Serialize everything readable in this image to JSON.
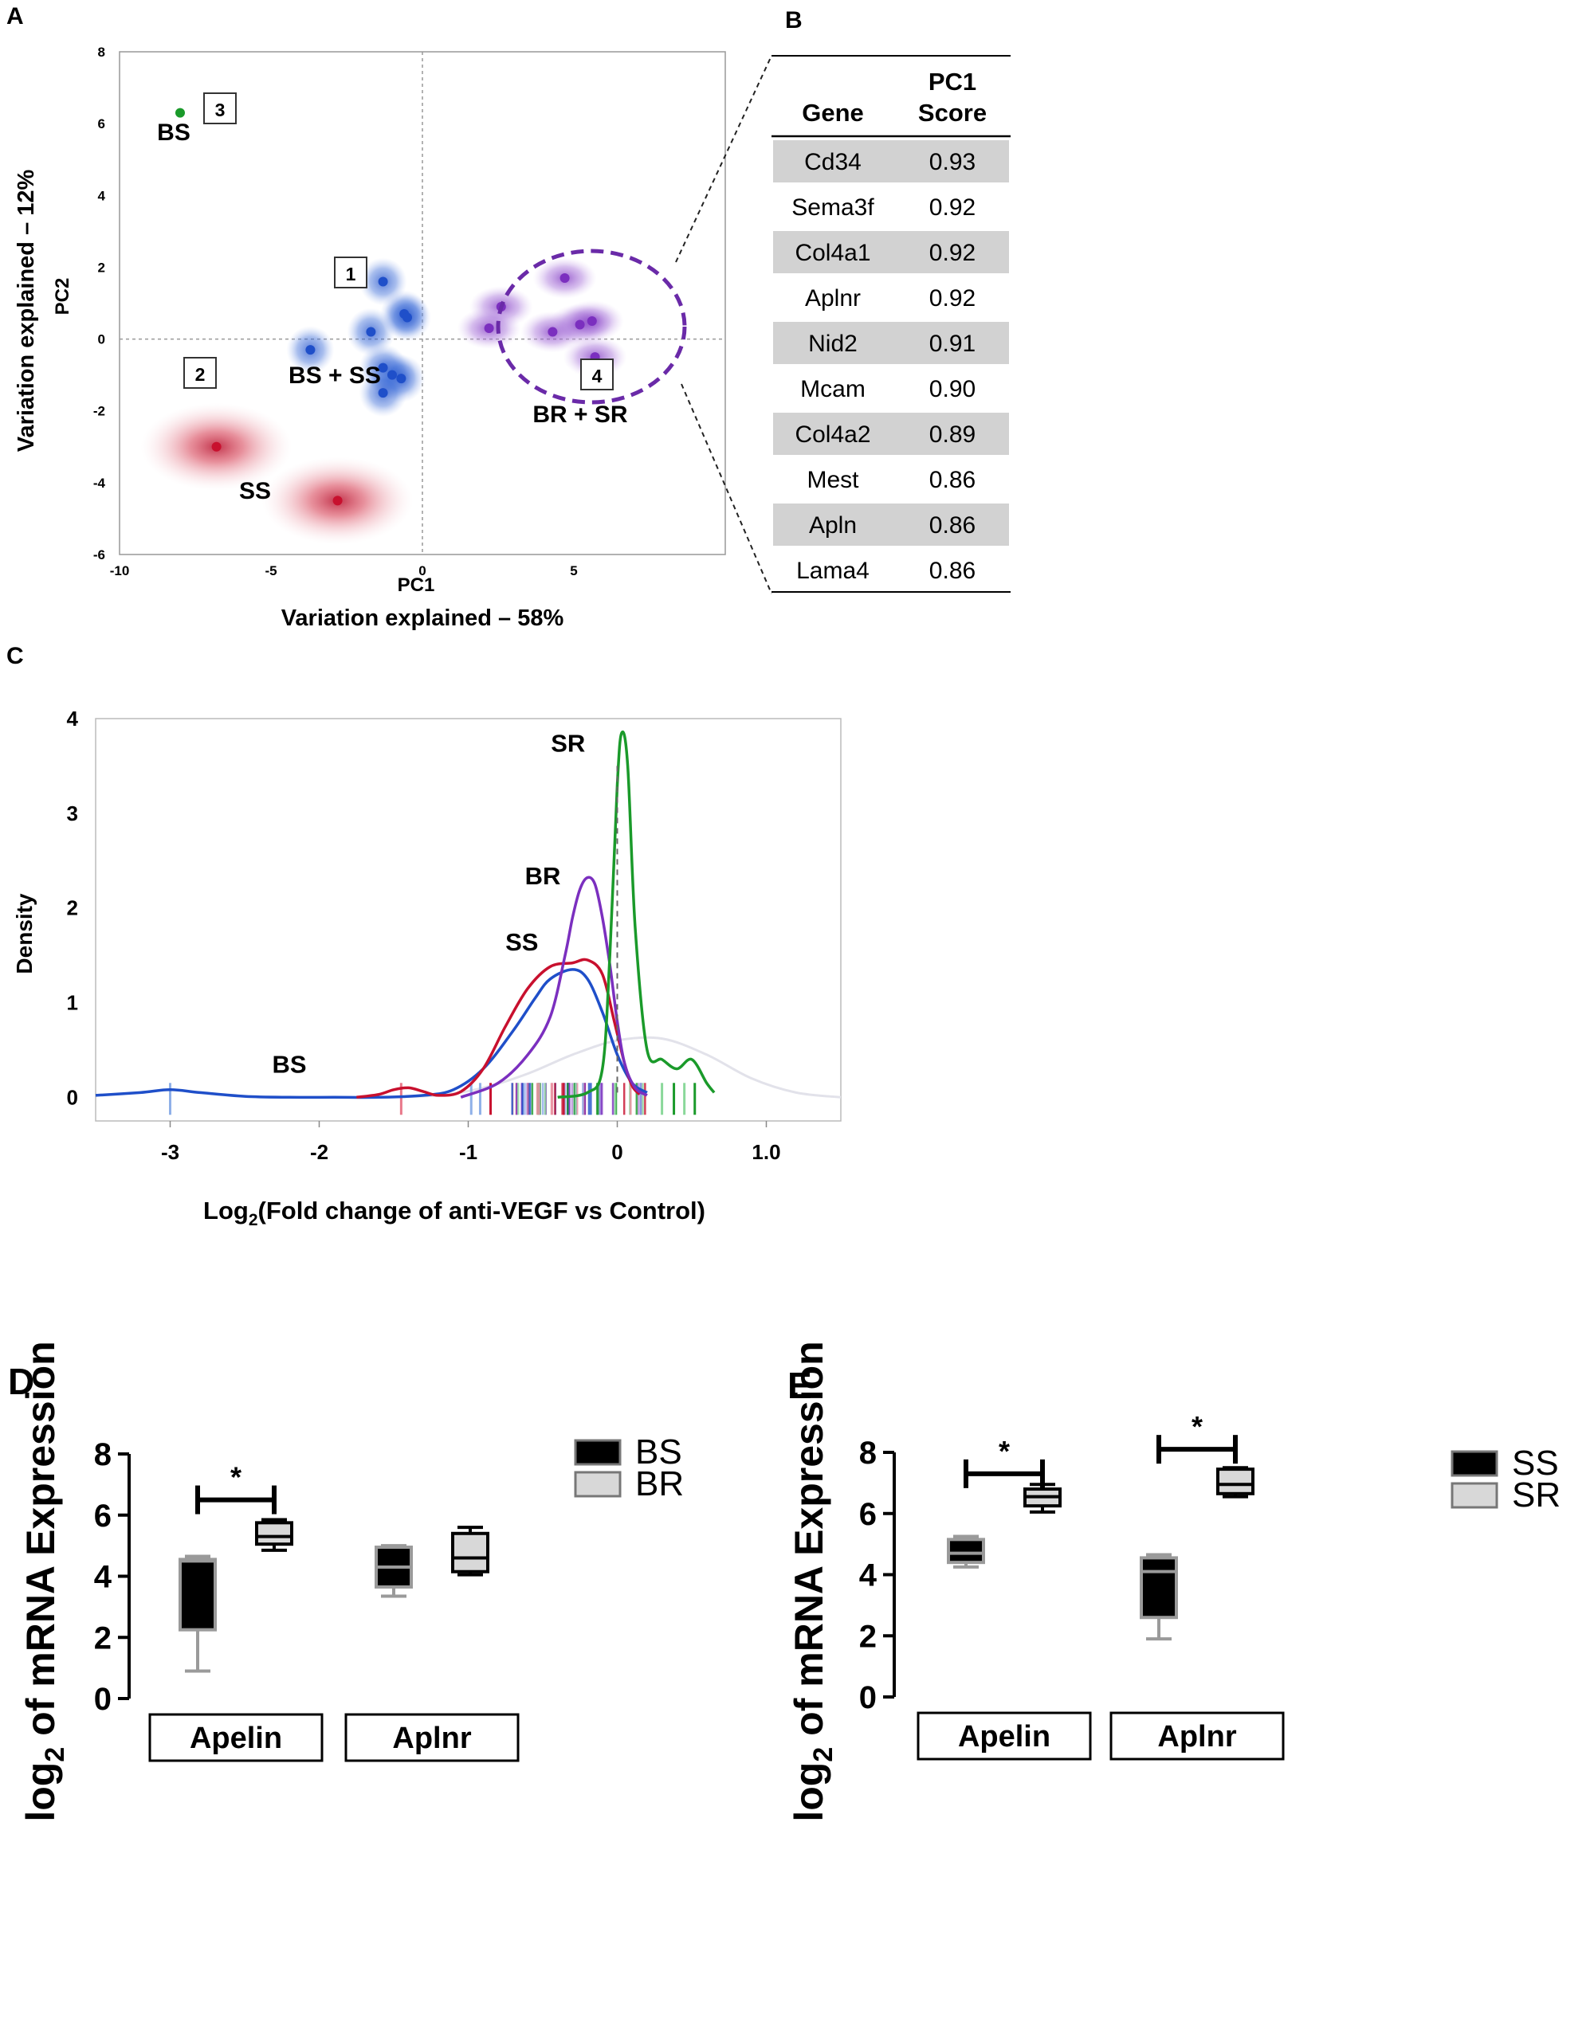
{
  "panel_labels": {
    "a": "A",
    "b": "B",
    "c": "C",
    "d": "D",
    "e": "E"
  },
  "colors": {
    "blue": "#1f4fc9",
    "purple": "#7b2fbf",
    "red": "#c8102e",
    "green": "#1a9a2a",
    "grey": "#d0d0d0",
    "black": "#000000"
  },
  "chart_data": [
    {
      "type": "scatter",
      "panel": "A",
      "xlabel": "PC1",
      "xlabel_sub": "Variation explained – 58%",
      "ylabel": "PC2",
      "ylabel_sub": "Variation explained – 12%",
      "xlim": [
        -10,
        10
      ],
      "ylim": [
        -6,
        8
      ],
      "xticks": [
        -10,
        -5,
        0,
        5
      ],
      "yticks": [
        -6,
        -4,
        -2,
        0,
        2,
        4,
        6,
        8
      ],
      "clusters": [
        {
          "id": "1",
          "label": "BS + SS",
          "color": "#1f4fc9",
          "points": [
            [
              -1.3,
              1.6
            ],
            [
              -0.6,
              0.7
            ],
            [
              -0.5,
              0.6
            ],
            [
              -1.7,
              0.2
            ],
            [
              -3.7,
              -0.3
            ],
            [
              -1.3,
              -0.8
            ],
            [
              -1.0,
              -1.0
            ],
            [
              -0.7,
              -1.1
            ],
            [
              -1.3,
              -1.5
            ]
          ]
        },
        {
          "id": "2",
          "label": "SS",
          "color": "#c8102e",
          "points": [
            [
              -6.8,
              -3.0
            ],
            [
              -2.8,
              -4.5
            ]
          ]
        },
        {
          "id": "3",
          "label": "BS",
          "color": "#1a9a2a",
          "points": [
            [
              -8.0,
              6.3
            ]
          ]
        },
        {
          "id": "4",
          "label": "BR + SR",
          "color": "#7b2fbf",
          "points": [
            [
              4.7,
              1.7
            ],
            [
              2.6,
              0.9
            ],
            [
              2.2,
              0.3
            ],
            [
              4.3,
              0.2
            ],
            [
              5.2,
              0.4
            ],
            [
              5.6,
              0.5
            ],
            [
              5.7,
              -0.5
            ]
          ]
        }
      ]
    },
    {
      "type": "table",
      "panel": "B",
      "columns": [
        "Gene",
        "PC1 Score"
      ],
      "rows": [
        [
          "Cd34",
          "0.93"
        ],
        [
          "Sema3f",
          "0.92"
        ],
        [
          "Col4a1",
          "0.92"
        ],
        [
          "Aplnr",
          "0.92"
        ],
        [
          "Nid2",
          "0.91"
        ],
        [
          "Mcam",
          "0.90"
        ],
        [
          "Col4a2",
          "0.89"
        ],
        [
          "Mest",
          "0.86"
        ],
        [
          "Apln",
          "0.86"
        ],
        [
          "Lama4",
          "0.86"
        ]
      ]
    },
    {
      "type": "line",
      "panel": "C",
      "xlabel": "Log",
      "xlabel_sub": "2",
      "xlabel_rest": "(Fold change of anti-VEGF vs Control)",
      "ylabel": "Density",
      "xlim": [
        -3.5,
        1.5
      ],
      "ylim": [
        -0.25,
        4.0
      ],
      "xticks": [
        -3,
        -2,
        -1,
        0,
        1.0
      ],
      "xtick_labels": [
        "-3",
        "-2",
        "-1",
        "0",
        "1.0"
      ],
      "yticks": [
        0,
        1,
        2,
        3,
        4
      ],
      "series": [
        {
          "name": "BS",
          "color": "#1f4fc9",
          "x": [
            -3.5,
            -3.2,
            -3.0,
            -2.8,
            -2.5,
            -2.2,
            -1.9,
            -1.6,
            -1.3,
            -1.1,
            -0.9,
            -0.7,
            -0.55,
            -0.45,
            -0.3,
            -0.2,
            -0.1,
            0.0,
            0.1,
            0.2
          ],
          "y": [
            0.02,
            0.05,
            0.08,
            0.05,
            0.01,
            0.0,
            0.0,
            0.0,
            0.02,
            0.08,
            0.3,
            0.7,
            1.05,
            1.25,
            1.35,
            1.25,
            0.9,
            0.45,
            0.15,
            0.05
          ]
        },
        {
          "name": "SS",
          "color": "#c8102e",
          "x": [
            -1.75,
            -1.6,
            -1.5,
            -1.4,
            -1.3,
            -1.2,
            -1.05,
            -0.9,
            -0.75,
            -0.6,
            -0.45,
            -0.3,
            -0.2,
            -0.1,
            -0.02,
            0.05,
            0.1,
            0.15
          ],
          "y": [
            0.0,
            0.03,
            0.08,
            0.1,
            0.06,
            0.02,
            0.06,
            0.3,
            0.75,
            1.15,
            1.38,
            1.42,
            1.45,
            1.3,
            0.8,
            0.35,
            0.12,
            0.03
          ]
        },
        {
          "name": "BR",
          "color": "#7b2fbf",
          "x": [
            -1.05,
            -0.8,
            -0.6,
            -0.45,
            -0.35,
            -0.3,
            -0.25,
            -0.2,
            -0.15,
            -0.1,
            -0.05,
            0.0,
            0.05,
            0.12,
            0.2
          ],
          "y": [
            0.0,
            0.15,
            0.45,
            0.85,
            1.5,
            1.9,
            2.2,
            2.32,
            2.25,
            1.9,
            1.4,
            0.8,
            0.35,
            0.1,
            0.02
          ]
        },
        {
          "name": "SR",
          "color": "#1a9a2a",
          "x": [
            -0.4,
            -0.2,
            -0.1,
            -0.05,
            0.0,
            0.03,
            0.07,
            0.12,
            0.2,
            0.3,
            0.4,
            0.5,
            0.6,
            0.65
          ],
          "y": [
            0.0,
            0.05,
            0.3,
            1.5,
            3.3,
            3.85,
            3.5,
            1.8,
            0.5,
            0.4,
            0.3,
            0.4,
            0.15,
            0.05
          ]
        }
      ],
      "background_series": {
        "color": "#e2e2ea",
        "x": [
          -1.6,
          -1.2,
          -0.9,
          -0.6,
          -0.3,
          0.0,
          0.3,
          0.6,
          0.9,
          1.2,
          1.5
        ],
        "y": [
          0.0,
          0.02,
          0.1,
          0.25,
          0.45,
          0.6,
          0.62,
          0.45,
          0.2,
          0.05,
          0.0
        ]
      },
      "vline_x": 0,
      "annotations": [
        {
          "text": "SR",
          "x": -0.33,
          "y": 3.65
        },
        {
          "text": "BR",
          "x": -0.5,
          "y": 2.25
        },
        {
          "text": "SS",
          "x": -0.64,
          "y": 1.55
        },
        {
          "text": "BS",
          "x": -2.2,
          "y": 0.26
        }
      ]
    },
    {
      "type": "box",
      "panel": "D",
      "ylabel": "log",
      "ylabel_sub": "2",
      "ylabel_rest": " of  mRNA Expression",
      "ylim": [
        0,
        8
      ],
      "yticks": [
        0,
        2,
        4,
        6,
        8
      ],
      "categories": [
        "Apelin",
        "Aplnr"
      ],
      "legend": [
        {
          "label": "BS",
          "fill": "#000000"
        },
        {
          "label": "BR",
          "fill": "#d8d8d8"
        }
      ],
      "boxes": [
        {
          "group": "Apelin",
          "series": "BS",
          "min": 0.9,
          "q1": 2.25,
          "median": 4.5,
          "q3": 4.55,
          "max": 4.65
        },
        {
          "group": "Apelin",
          "series": "BR",
          "min": 4.85,
          "q1": 5.05,
          "median": 5.3,
          "q3": 5.75,
          "max": 5.85
        },
        {
          "group": "Aplnr",
          "series": "BS",
          "min": 3.35,
          "q1": 3.65,
          "median": 4.3,
          "q3": 4.95,
          "max": 5.0
        },
        {
          "group": "Aplnr",
          "series": "BR",
          "min": 4.05,
          "q1": 4.15,
          "median": 4.6,
          "q3": 5.4,
          "max": 5.6
        }
      ],
      "significance": [
        {
          "group": "Apelin",
          "y": 6.5,
          "text": "*"
        }
      ]
    },
    {
      "type": "box",
      "panel": "E",
      "ylabel": "log",
      "ylabel_sub": "2",
      "ylabel_rest": " of  mRNA Expression",
      "ylim": [
        0,
        8
      ],
      "yticks": [
        0,
        2,
        4,
        6,
        8
      ],
      "categories": [
        "Apelin",
        "Aplnr"
      ],
      "legend": [
        {
          "label": "SS",
          "fill": "#000000"
        },
        {
          "label": "SR",
          "fill": "#d8d8d8"
        }
      ],
      "boxes": [
        {
          "group": "Apelin",
          "series": "SS",
          "min": 4.25,
          "q1": 4.4,
          "median": 4.7,
          "q3": 5.15,
          "max": 5.25
        },
        {
          "group": "Apelin",
          "series": "SR",
          "min": 6.05,
          "q1": 6.25,
          "median": 6.55,
          "q3": 6.8,
          "max": 6.95
        },
        {
          "group": "Aplnr",
          "series": "SS",
          "min": 1.9,
          "q1": 2.6,
          "median": 4.1,
          "q3": 4.55,
          "max": 4.65
        },
        {
          "group": "Aplnr",
          "series": "SR",
          "min": 6.55,
          "q1": 6.65,
          "median": 6.95,
          "q3": 7.45,
          "max": 7.5
        }
      ],
      "significance": [
        {
          "group": "Apelin",
          "y": 7.3,
          "text": "*"
        },
        {
          "group": "Aplnr",
          "y": 8.1,
          "text": "*"
        }
      ]
    }
  ]
}
